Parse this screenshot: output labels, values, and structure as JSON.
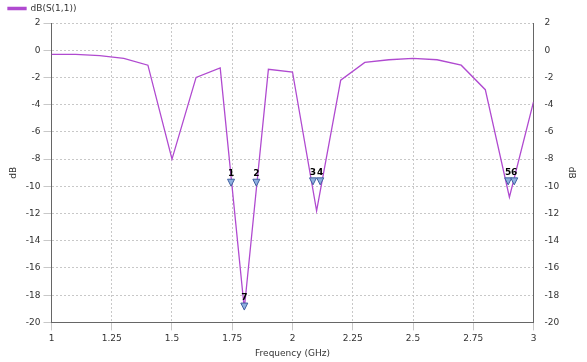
{
  "chart_data": {
    "type": "line",
    "x_label": "Frequency (GHz)",
    "y_label": "dB",
    "y2_label": "dB",
    "series": [
      {
        "name": "dB(S(1,1))",
        "color": "#b04ad0",
        "x": [
          1.0,
          1.1,
          1.2,
          1.3,
          1.4,
          1.5,
          1.6,
          1.7,
          1.8,
          1.9,
          2.0,
          2.1,
          2.2,
          2.3,
          2.4,
          2.5,
          2.6,
          2.7,
          2.8,
          2.9,
          3.0
        ],
        "values": [
          -0.3,
          -0.3,
          -0.4,
          -0.6,
          -1.1,
          -8.0,
          -2.0,
          -1.3,
          -19.0,
          -1.4,
          -1.6,
          -11.8,
          -2.2,
          -0.9,
          -0.7,
          -0.6,
          -0.7,
          -1.1,
          -2.9,
          -10.8,
          -3.8
        ]
      }
    ],
    "annotations": [
      {
        "text": "1",
        "x": 1.745,
        "y": -9.7
      },
      {
        "text": "2",
        "x": 1.85,
        "y": -9.7
      },
      {
        "text": "7",
        "x": 1.8,
        "y": -18.8
      },
      {
        "text": "3",
        "x": 2.085,
        "y": -9.6
      },
      {
        "text": "4",
        "x": 2.115,
        "y": -9.6
      },
      {
        "text": "5",
        "x": 2.895,
        "y": -9.6
      },
      {
        "text": "6",
        "x": 2.92,
        "y": -9.6
      }
    ],
    "xlim": [
      1,
      3
    ],
    "xticks": [
      1,
      1.25,
      1.5,
      1.75,
      2,
      2.25,
      2.5,
      2.75,
      3
    ],
    "ylim": [
      -20,
      2
    ],
    "yticks": [
      -20,
      -18,
      -16,
      -14,
      -12,
      -10,
      -8,
      -6,
      -4,
      -2,
      0,
      2
    ],
    "y2lim": [
      -20,
      2
    ],
    "y2ticks": [
      -20,
      -18,
      -16,
      -14,
      -12,
      -10,
      -8,
      -6,
      -4,
      -2,
      0,
      2
    ],
    "grid": true,
    "legend": "top-left"
  }
}
